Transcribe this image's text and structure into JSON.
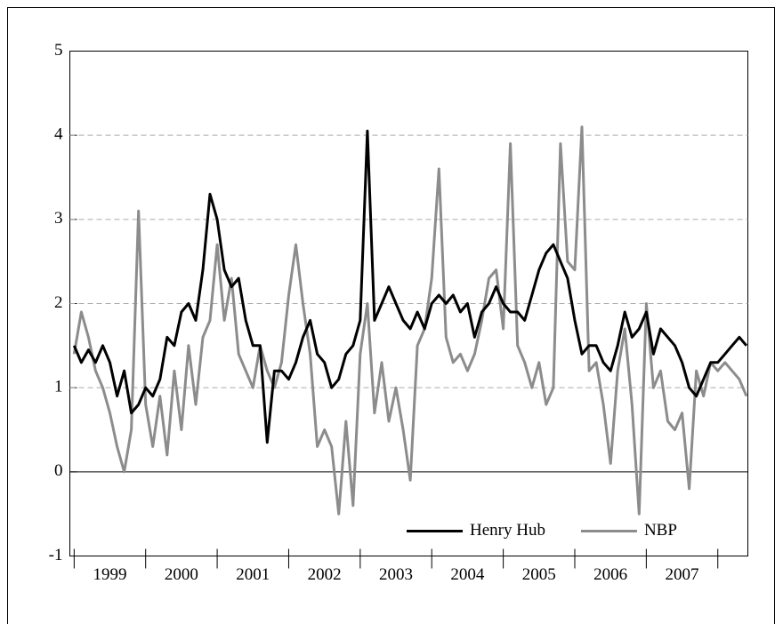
{
  "chart_data": {
    "type": "line",
    "x": [
      1999.0,
      1999.1,
      1999.2,
      1999.3,
      1999.4,
      1999.5,
      1999.6,
      1999.7,
      1999.8,
      1999.9,
      2000.0,
      2000.1,
      2000.2,
      2000.3,
      2000.4,
      2000.5,
      2000.6,
      2000.7,
      2000.8,
      2000.9,
      2001.0,
      2001.1,
      2001.2,
      2001.3,
      2001.4,
      2001.5,
      2001.6,
      2001.7,
      2001.8,
      2001.9,
      2002.0,
      2002.1,
      2002.2,
      2002.3,
      2002.4,
      2002.5,
      2002.6,
      2002.7,
      2002.8,
      2002.9,
      2003.0,
      2003.1,
      2003.2,
      2003.3,
      2003.4,
      2003.5,
      2003.6,
      2003.7,
      2003.8,
      2003.9,
      2004.0,
      2004.1,
      2004.2,
      2004.3,
      2004.4,
      2004.5,
      2004.6,
      2004.7,
      2004.8,
      2004.9,
      2005.0,
      2005.1,
      2005.2,
      2005.3,
      2005.4,
      2005.5,
      2005.6,
      2005.7,
      2005.8,
      2005.9,
      2006.0,
      2006.1,
      2006.2,
      2006.3,
      2006.4,
      2006.5,
      2006.6,
      2006.7,
      2006.8,
      2006.9,
      2007.0,
      2007.1,
      2007.2,
      2007.3,
      2007.4,
      2007.5,
      2007.6,
      2007.7,
      2007.8,
      2007.9,
      2008.0,
      2008.1,
      2008.2,
      2008.3,
      2008.4
    ],
    "series": [
      {
        "name": "Henry Hub",
        "color": "#000000",
        "values": [
          1.5,
          1.3,
          1.45,
          1.3,
          1.5,
          1.3,
          0.9,
          1.2,
          0.7,
          0.8,
          1.0,
          0.9,
          1.1,
          1.6,
          1.5,
          1.9,
          2.0,
          1.8,
          2.4,
          3.3,
          3.0,
          2.4,
          2.2,
          2.3,
          1.8,
          1.5,
          1.5,
          0.35,
          1.2,
          1.2,
          1.1,
          1.3,
          1.6,
          1.8,
          1.4,
          1.3,
          1.0,
          1.1,
          1.4,
          1.5,
          1.8,
          4.05,
          1.8,
          2.0,
          2.2,
          2.0,
          1.8,
          1.7,
          1.9,
          1.7,
          2.0,
          2.1,
          2.0,
          2.1,
          1.9,
          2.0,
          1.6,
          1.9,
          2.0,
          2.2,
          2.0,
          1.9,
          1.9,
          1.8,
          2.1,
          2.4,
          2.6,
          2.7,
          2.5,
          2.3,
          1.8,
          1.4,
          1.5,
          1.5,
          1.3,
          1.2,
          1.5,
          1.9,
          1.6,
          1.7,
          1.9,
          1.4,
          1.7,
          1.6,
          1.5,
          1.3,
          1.0,
          0.9,
          1.1,
          1.3,
          1.3,
          1.4,
          1.5,
          1.6,
          1.5
        ]
      },
      {
        "name": "NBP",
        "color": "#8c8c8c",
        "values": [
          1.4,
          1.9,
          1.6,
          1.2,
          1.0,
          0.7,
          0.3,
          0.0,
          0.5,
          3.1,
          0.8,
          0.3,
          0.9,
          0.2,
          1.2,
          0.5,
          1.5,
          0.8,
          1.6,
          1.8,
          2.7,
          1.8,
          2.3,
          1.4,
          1.2,
          1.0,
          1.5,
          1.2,
          1.0,
          1.3,
          2.1,
          2.7,
          2.0,
          1.4,
          0.3,
          0.5,
          0.3,
          -0.5,
          0.6,
          -0.4,
          1.4,
          2.0,
          0.7,
          1.3,
          0.6,
          1.0,
          0.5,
          -0.1,
          1.5,
          1.7,
          2.3,
          3.6,
          1.6,
          1.3,
          1.4,
          1.2,
          1.4,
          1.8,
          2.3,
          2.4,
          1.7,
          3.9,
          1.5,
          1.3,
          1.0,
          1.3,
          0.8,
          1.0,
          3.9,
          2.5,
          2.4,
          4.1,
          1.2,
          1.3,
          0.8,
          0.1,
          1.2,
          1.7,
          0.8,
          -0.5,
          2.0,
          1.0,
          1.2,
          0.6,
          0.5,
          0.7,
          -0.2,
          1.2,
          0.9,
          1.3,
          1.2,
          1.3,
          1.2,
          1.1,
          0.9
        ]
      }
    ],
    "xlim": [
      1998.94,
      2008.42
    ],
    "xticks": [
      {
        "value": 1999.5,
        "label": "1999"
      },
      {
        "value": 2000.5,
        "label": "2000"
      },
      {
        "value": 2001.5,
        "label": "2001"
      },
      {
        "value": 2002.5,
        "label": "2002"
      },
      {
        "value": 2003.5,
        "label": "2003"
      },
      {
        "value": 2004.5,
        "label": "2004"
      },
      {
        "value": 2005.5,
        "label": "2005"
      },
      {
        "value": 2006.5,
        "label": "2006"
      },
      {
        "value": 2007.5,
        "label": "2007"
      }
    ],
    "xtick_marks": [
      1999,
      2000,
      2001,
      2002,
      2003,
      2004,
      2005,
      2006,
      2007,
      2008
    ],
    "ylim": [
      -1,
      5
    ],
    "yticks": [
      -1,
      0,
      1,
      2,
      3,
      4,
      5
    ],
    "grid": true,
    "legend": "lower right"
  }
}
